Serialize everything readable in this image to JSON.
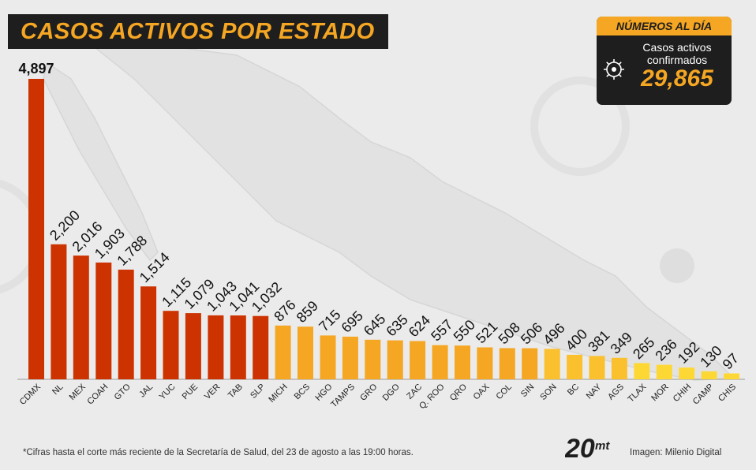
{
  "header": {
    "title": "CASOS ACTIVOS POR ESTADO"
  },
  "stat_card": {
    "header": "NÚMEROS AL DÍA",
    "label_line1": "Casos activos",
    "label_line2": "confirmados",
    "value": "29,865",
    "icon": "virus-icon"
  },
  "footer": {
    "note": "*Cifras hasta el corte más reciente de la Secretaría de Salud, del 23 de agosto a las 19:00 horas.",
    "credit": "Imagen: Milenio Digital",
    "logo_text": "20",
    "logo_sub": "mt"
  },
  "colors": {
    "accent": "#f5a623",
    "dark": "#1e1e1e",
    "group_red": "#cc3300",
    "group_orange": "#f5a623",
    "group_yellow": "#fbc02d",
    "group_yellow_light": "#fdd835"
  },
  "chart_data": {
    "type": "bar",
    "title": "CASOS ACTIVOS POR ESTADO",
    "xlabel": "",
    "ylabel": "",
    "grid": false,
    "legend": "none",
    "categories": [
      "CDMX",
      "NL",
      "MEX",
      "COAH",
      "GTO",
      "JAL",
      "YUC",
      "PUE",
      "VER",
      "TAB",
      "SLP",
      "MICH",
      "BCS",
      "HGO",
      "TAMPS",
      "GRO",
      "DGO",
      "ZAC",
      "Q. ROO",
      "QRO",
      "OAX",
      "COL",
      "SIN",
      "SON",
      "BC",
      "NAY",
      "AGS",
      "TLAX",
      "MOR",
      "CHIH",
      "CAMP",
      "CHIS"
    ],
    "values": [
      4897,
      2200,
      2016,
      1903,
      1788,
      1514,
      1115,
      1079,
      1043,
      1041,
      1032,
      876,
      859,
      715,
      695,
      645,
      635,
      624,
      557,
      550,
      521,
      508,
      506,
      496,
      400,
      381,
      349,
      265,
      236,
      192,
      130,
      97
    ],
    "value_labels": [
      "4,897",
      "2,200",
      "2,016",
      "1,903",
      "1,788",
      "1,514",
      "1,115",
      "1,079",
      "1,043",
      "1,041",
      "1,032",
      "876",
      "859",
      "715",
      "695",
      "645",
      "635",
      "624",
      "557",
      "550",
      "521",
      "508",
      "506",
      "496",
      "400",
      "381",
      "349",
      "265",
      "236",
      "192",
      "130",
      "97"
    ],
    "color_groups": [
      "red",
      "red",
      "red",
      "red",
      "red",
      "red",
      "red",
      "red",
      "red",
      "red",
      "red",
      "orange",
      "orange",
      "orange",
      "orange",
      "orange",
      "orange",
      "orange",
      "orange",
      "orange",
      "orange",
      "orange",
      "orange",
      "yellow",
      "yellow",
      "yellow",
      "yellow",
      "yellow_light",
      "yellow_light",
      "yellow_light",
      "yellow_light",
      "yellow_light"
    ],
    "ylim": [
      0,
      4897
    ]
  }
}
